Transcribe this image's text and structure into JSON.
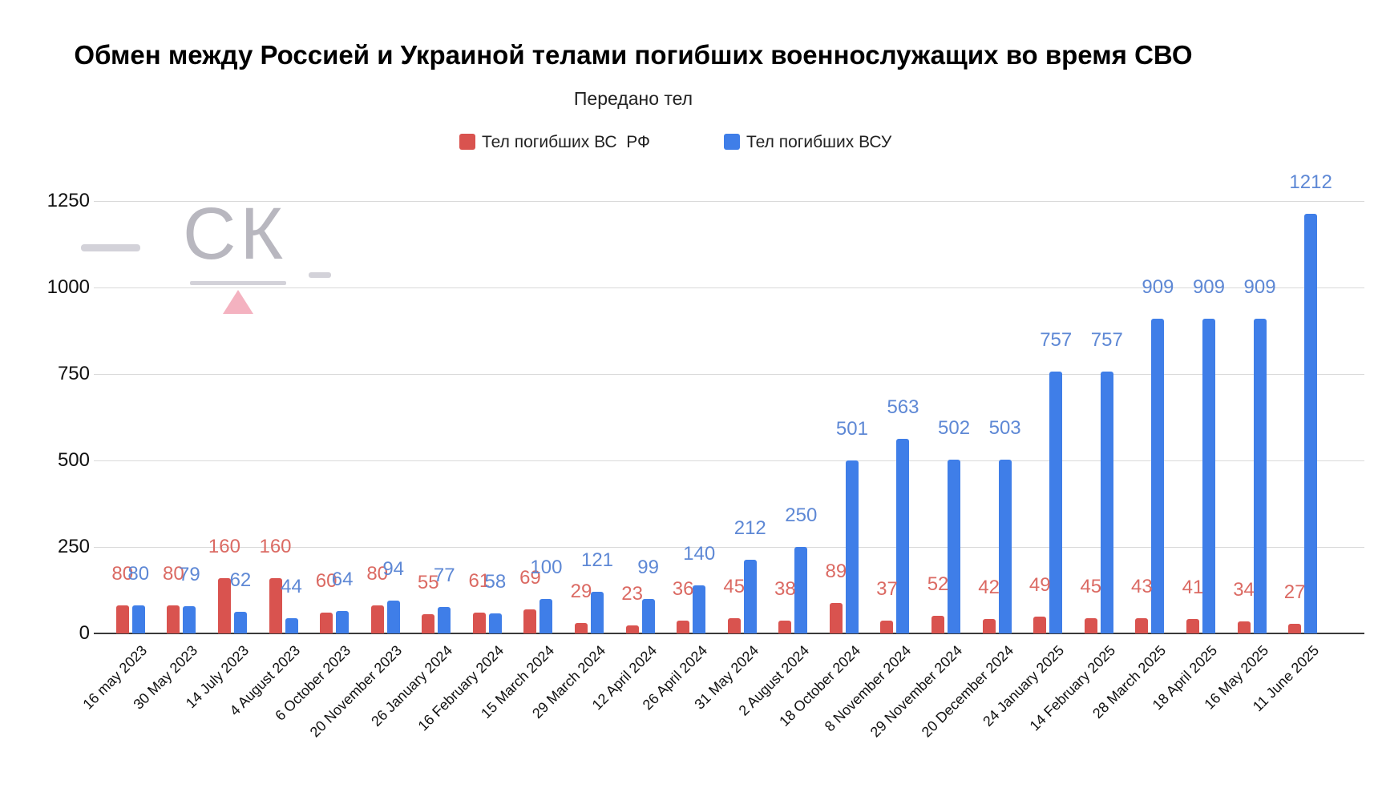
{
  "title": "Обмен между Россией и Украиной телами погибших военнослужащих во время СВО",
  "subtitle": "Передано тел",
  "legend": {
    "items": [
      {
        "label": "Тел погибших ВС  РФ",
        "color": "#d9534f"
      },
      {
        "label": "Тел погибших ВСУ",
        "color": "#3f7ee8"
      }
    ]
  },
  "watermark": {
    "text": "СК"
  },
  "colors": {
    "bar_rf": "#d9534f",
    "bar_vsu": "#3f7ee8",
    "label_rf": "#db6a63",
    "label_vsu": "#5e88d5",
    "gridline": "#d9d9d9",
    "axis_line": "#3a3a3a",
    "watermark_gray": "#b5b4bc",
    "watermark_pink": "#f3aab9"
  },
  "chart_data": {
    "type": "bar",
    "title": "Обмен между Россией и Украиной телами погибших военнослужащих во время СВО",
    "subtitle": "Передано тел",
    "xlabel": "",
    "ylabel": "",
    "ylim": [
      0,
      1250
    ],
    "yticks": [
      0,
      250,
      500,
      750,
      1000,
      1250
    ],
    "grid": true,
    "legend_position": "top",
    "categories": [
      "16 may 2023",
      "30 May 2023",
      "14 July 2023",
      "4 August 2023",
      "6 October 2023",
      "20 November 2023",
      "26 January 2024",
      "16 February 2024",
      "15 March 2024",
      "29 March 2024",
      "12 April 2024",
      "26 April 2024",
      "31 May 2024",
      "2 August 2024",
      "18 October 2024",
      "8 November 2024",
      "29 November 2024",
      "20 December 2024",
      "24 January 2025",
      "14 February 2025",
      "28 March 2025",
      "18 April 2025",
      "16 May 2025",
      "11 June 2025"
    ],
    "series": [
      {
        "name": "Тел погибших ВС  РФ",
        "values": [
          80,
          80,
          160,
          160,
          60,
          80,
          55,
          61,
          69,
          29,
          23,
          36,
          45,
          38,
          89,
          37,
          52,
          42,
          49,
          45,
          43,
          41,
          34,
          27
        ]
      },
      {
        "name": "Тел погибших ВСУ",
        "values": [
          80,
          79,
          62,
          44,
          64,
          94,
          77,
          58,
          100,
          121,
          99,
          140,
          212,
          250,
          501,
          563,
          502,
          503,
          757,
          757,
          909,
          909,
          909,
          1212
        ]
      }
    ]
  }
}
